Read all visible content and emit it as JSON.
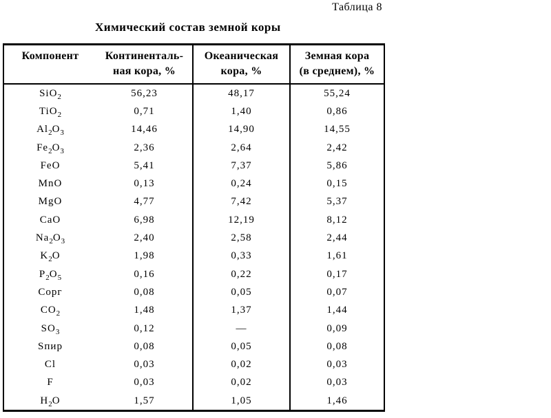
{
  "page": {
    "table_label": "Таблица 8",
    "title": "Химический состав земной коры"
  },
  "table": {
    "headers": [
      {
        "line1": "Компонент",
        "line2": ""
      },
      {
        "line1": "Континенталь-",
        "line2": "ная кора, %"
      },
      {
        "line1": "Океаническая",
        "line2": "кора, %"
      },
      {
        "line1": "Земная кора",
        "line2": "(в среднем), %"
      }
    ],
    "rows": [
      {
        "component": [
          {
            "t": "SiO"
          },
          {
            "t": "2",
            "sub": true
          }
        ],
        "values": [
          "56,23",
          "48,17",
          "55,24"
        ]
      },
      {
        "component": [
          {
            "t": "TiO"
          },
          {
            "t": "2",
            "sub": true
          }
        ],
        "values": [
          "0,71",
          "1,40",
          "0,86"
        ]
      },
      {
        "component": [
          {
            "t": "Al"
          },
          {
            "t": "2",
            "sub": true
          },
          {
            "t": "O"
          },
          {
            "t": "3",
            "sub": true
          }
        ],
        "values": [
          "14,46",
          "14,90",
          "14,55"
        ]
      },
      {
        "component": [
          {
            "t": "Fe"
          },
          {
            "t": "2",
            "sub": true
          },
          {
            "t": "O"
          },
          {
            "t": "3",
            "sub": true
          }
        ],
        "values": [
          "2,36",
          "2,64",
          "2,42"
        ]
      },
      {
        "component": [
          {
            "t": "FeO"
          }
        ],
        "values": [
          "5,41",
          "7,37",
          "5,86"
        ]
      },
      {
        "component": [
          {
            "t": "MnO"
          }
        ],
        "values": [
          "0,13",
          "0,24",
          "0,15"
        ]
      },
      {
        "component": [
          {
            "t": "MgO"
          }
        ],
        "values": [
          "4,77",
          "7,42",
          "5,37"
        ]
      },
      {
        "component": [
          {
            "t": "CaO"
          }
        ],
        "values": [
          "6,98",
          "12,19",
          "8,12"
        ]
      },
      {
        "component": [
          {
            "t": "Na"
          },
          {
            "t": "2",
            "sub": true
          },
          {
            "t": "O"
          },
          {
            "t": "3",
            "sub": true
          }
        ],
        "values": [
          "2,40",
          "2,58",
          "2,44"
        ]
      },
      {
        "component": [
          {
            "t": "K"
          },
          {
            "t": "2",
            "sub": true
          },
          {
            "t": "O"
          }
        ],
        "values": [
          "1,98",
          "0,33",
          "1,61"
        ]
      },
      {
        "component": [
          {
            "t": "P"
          },
          {
            "t": "2",
            "sub": true
          },
          {
            "t": "O"
          },
          {
            "t": "5",
            "sub": true
          }
        ],
        "values": [
          "0,16",
          "0,22",
          "0,17"
        ]
      },
      {
        "component": [
          {
            "t": "Сорг"
          }
        ],
        "values": [
          "0,08",
          "0,05",
          "0,07"
        ]
      },
      {
        "component": [
          {
            "t": "CO"
          },
          {
            "t": "2",
            "sub": true
          }
        ],
        "values": [
          "1,48",
          "1,37",
          "1,44"
        ]
      },
      {
        "component": [
          {
            "t": "SO"
          },
          {
            "t": "3",
            "sub": true
          }
        ],
        "values": [
          "0,12",
          "—",
          "0,09"
        ]
      },
      {
        "component": [
          {
            "t": "Sпир"
          }
        ],
        "values": [
          "0,08",
          "0,05",
          "0,08"
        ]
      },
      {
        "component": [
          {
            "t": "Cl"
          }
        ],
        "values": [
          "0,03",
          "0,02",
          "0,03"
        ]
      },
      {
        "component": [
          {
            "t": "F"
          }
        ],
        "values": [
          "0,03",
          "0,02",
          "0,03"
        ]
      },
      {
        "component": [
          {
            "t": "H"
          },
          {
            "t": "2",
            "sub": true
          },
          {
            "t": "O"
          }
        ],
        "values": [
          "1,57",
          "1,05",
          "1,46"
        ]
      }
    ]
  }
}
